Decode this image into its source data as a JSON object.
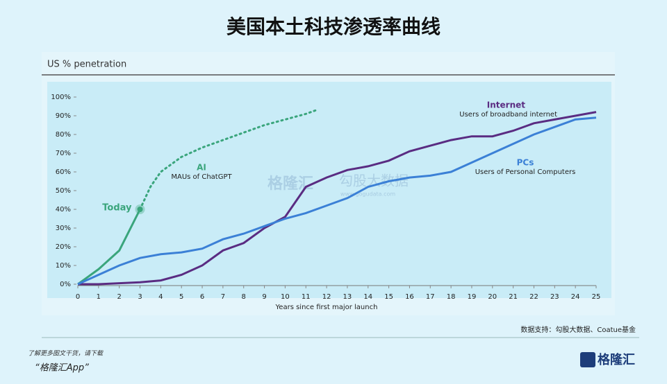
{
  "chart_data": {
    "type": "line",
    "title": "美国本土科技渗透率曲线",
    "subtitle": "US % penetration",
    "x_label": "Years since first major launch",
    "xlim": [
      0,
      25
    ],
    "xticks": [
      0,
      1,
      2,
      3,
      4,
      5,
      6,
      7,
      8,
      9,
      10,
      11,
      12,
      13,
      14,
      15,
      16,
      17,
      18,
      19,
      20,
      21,
      22,
      23,
      24,
      25
    ],
    "ylim": [
      0,
      100
    ],
    "yticks": [
      {
        "value": 0,
        "label": "0%"
      },
      {
        "value": 10,
        "label": "10%"
      },
      {
        "value": 20,
        "label": "20%"
      },
      {
        "value": 30,
        "label": "30%"
      },
      {
        "value": 40,
        "label": "40%"
      },
      {
        "value": 50,
        "label": "50%"
      },
      {
        "value": 60,
        "label": "60%"
      },
      {
        "value": 70,
        "label": "70%"
      },
      {
        "value": 80,
        "label": "80%"
      },
      {
        "value": 90,
        "label": "90%"
      },
      {
        "value": 100,
        "label": "100%"
      }
    ],
    "series": [
      {
        "name": "AI",
        "description": "MAUs of ChatGPT",
        "color": "#3aa57c",
        "x": [
          0,
          1,
          2,
          3,
          3.5,
          4,
          5,
          6,
          7,
          8,
          9,
          10,
          11,
          11.5
        ],
        "values": [
          0,
          8,
          18,
          40,
          52,
          60,
          68,
          73,
          77,
          81,
          85,
          88,
          91,
          93
        ]
      },
      {
        "name": "Internet",
        "description": "Users of broadband internet",
        "color": "#5a2c82",
        "x": [
          0,
          1,
          2,
          3,
          4,
          5,
          6,
          7,
          8,
          9,
          10,
          11,
          12,
          13,
          14,
          15,
          16,
          17,
          18,
          19,
          20,
          21,
          22,
          23,
          24,
          25
        ],
        "values": [
          0,
          0,
          0.5,
          1,
          2,
          5,
          10,
          18,
          22,
          30,
          36,
          52,
          57,
          61,
          63,
          66,
          71,
          74,
          77,
          79,
          79,
          82,
          86,
          88,
          90,
          92
        ]
      },
      {
        "name": "PCs",
        "description": "Users of Personal Computers",
        "color": "#3b80d6",
        "x": [
          0,
          1,
          2,
          3,
          4,
          5,
          6,
          7,
          8,
          9,
          10,
          11,
          12,
          13,
          14,
          15,
          16,
          17,
          18,
          19,
          20,
          21,
          22,
          23,
          24,
          25
        ],
        "values": [
          0,
          5,
          10,
          14,
          16,
          17,
          19,
          24,
          27,
          31,
          35,
          38,
          42,
          46,
          52,
          55,
          57,
          58,
          60,
          65,
          70,
          75,
          80,
          84,
          88,
          89
        ]
      }
    ],
    "annotations": [
      {
        "text": "Today",
        "x": 3,
        "y": 40
      }
    ],
    "source": "数据支持：勾股大数据、Coatue基金"
  },
  "footer": {
    "line1": "了解更多图文干货，请下载",
    "line2": "“格隆汇App”",
    "logo": "格隆汇"
  },
  "watermark": {
    "brand": "格隆汇",
    "site_name": "勾股大数据",
    "url": "www.gogudata.com"
  }
}
